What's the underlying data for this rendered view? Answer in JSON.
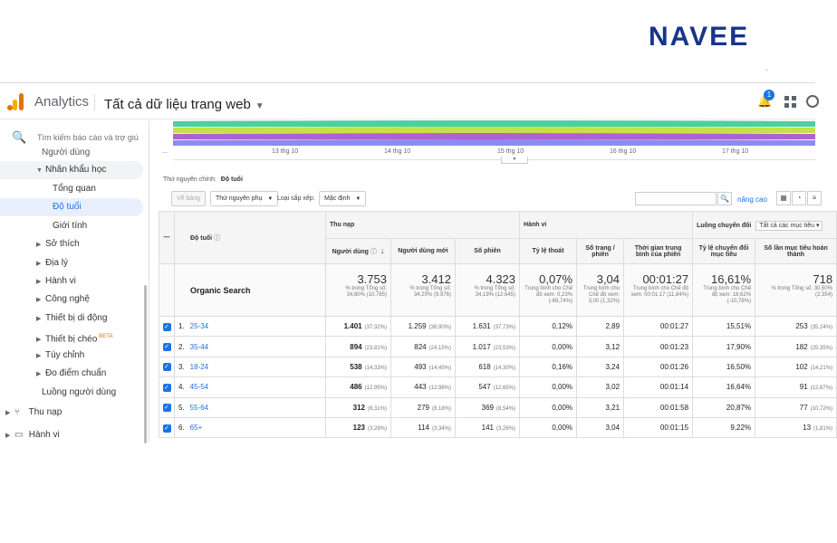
{
  "brand": {
    "logo_text": "NAVEE"
  },
  "topbar": {
    "app_name": "Analytics",
    "property": "Tất cả dữ liệu trang web",
    "notification_count": "1"
  },
  "sidebar": {
    "search_placeholder": "Tìm kiếm báo cáo và trợ giú",
    "items": [
      {
        "label": "Người dùng"
      },
      {
        "label": "Nhân khẩu học"
      },
      {
        "label": "Tổng quan"
      },
      {
        "label": "Độ tuổi"
      },
      {
        "label": "Giới tính"
      },
      {
        "label": "Sở thích"
      },
      {
        "label": "Địa lý"
      },
      {
        "label": "Hành vi"
      },
      {
        "label": "Công nghệ"
      },
      {
        "label": "Thiết bị di động"
      },
      {
        "label": "Thiết bị chéo",
        "badge": "BETA"
      },
      {
        "label": "Tùy chỉnh"
      },
      {
        "label": "Đo điểm chuẩn"
      },
      {
        "label": "Luồng người dùng"
      },
      {
        "label": "Thu nạp"
      },
      {
        "label": "Hành vi"
      }
    ]
  },
  "chart": {
    "x_labels": [
      "13 thg 10",
      "14 thg 10",
      "15 thg 10",
      "16 thg 10",
      "17 thg 10"
    ],
    "series_colors": [
      "#4dd0a0",
      "#c6e04a",
      "#b05fd4",
      "#8c8cf0"
    ],
    "ellipsis": "..."
  },
  "dimension": {
    "label": "Thứ nguyên chính:",
    "value": "Độ tuổi"
  },
  "toolbar": {
    "plot_rows": "Vẽ bảng",
    "secondary_dimension": "Thứ nguyên phụ",
    "sort_type_label": "Loại sắp xếp:",
    "sort_type_value": "Mặc định",
    "advanced": "nâng cao"
  },
  "table": {
    "dim_header": "Độ tuổi",
    "groups": {
      "acquisition": "Thu nạp",
      "behavior": "Hành vi",
      "conversions": "Luồng chuyển đổi",
      "goal_select": "Tất cả các mục tiêu"
    },
    "columns": [
      "Người dùng",
      "Người dùng mới",
      "Số phiên",
      "Tỷ lệ thoát",
      "Số trang / phiên",
      "Thời gian trung bình của phiên",
      "Tỷ lệ chuyển đổi mục tiêu",
      "Số lần mục tiêu hoàn thành"
    ],
    "totals": {
      "label": "Organic Search",
      "values": [
        {
          "big": "3.753",
          "small": "% trong Tổng số: 34,80% (10.785)"
        },
        {
          "big": "3.412",
          "small": "% trong Tổng số: 34,20% (9.976)"
        },
        {
          "big": "4.323",
          "small": "% trong Tổng số: 34,19% (12.645)"
        },
        {
          "big": "0,07%",
          "small": "Trung bình cho Chế độ xem: 0,23% (-69,74%)"
        },
        {
          "big": "3,04",
          "small": "Trung bình cho Chế độ xem: 3,00 (1,32%)"
        },
        {
          "big": "00:01:27",
          "small": "Trung bình cho Chế độ xem: 00:01:17 (11,84%)"
        },
        {
          "big": "16,61%",
          "small": "Trung bình cho Chế độ xem: 18,62% (-10,78%)"
        },
        {
          "big": "718",
          "small": "% trong Tổng số: 30,50% (2.354)"
        }
      ]
    },
    "rows": [
      {
        "idx": "1.",
        "age": "25-34",
        "users": "1.401",
        "users_pct": "(37,32%)",
        "new_users": "1.259",
        "new_users_pct": "(36,90%)",
        "sessions": "1.631",
        "sessions_pct": "(37,73%)",
        "bounce": "0,12%",
        "pages": "2,89",
        "duration": "00:01:27",
        "conv": "15,51%",
        "goals": "253",
        "goals_pct": "(35,24%)"
      },
      {
        "idx": "2.",
        "age": "35-44",
        "users": "894",
        "users_pct": "(23,81%)",
        "new_users": "824",
        "new_users_pct": "(24,15%)",
        "sessions": "1.017",
        "sessions_pct": "(23,53%)",
        "bounce": "0,00%",
        "pages": "3,12",
        "duration": "00:01:23",
        "conv": "17,90%",
        "goals": "182",
        "goals_pct": "(25,35%)"
      },
      {
        "idx": "3.",
        "age": "18-24",
        "users": "538",
        "users_pct": "(14,33%)",
        "new_users": "493",
        "new_users_pct": "(14,45%)",
        "sessions": "618",
        "sessions_pct": "(14,30%)",
        "bounce": "0,16%",
        "pages": "3,24",
        "duration": "00:01:26",
        "conv": "16,50%",
        "goals": "102",
        "goals_pct": "(14,21%)"
      },
      {
        "idx": "4.",
        "age": "45-54",
        "users": "486",
        "users_pct": "(12,95%)",
        "new_users": "443",
        "new_users_pct": "(12,98%)",
        "sessions": "547",
        "sessions_pct": "(12,65%)",
        "bounce": "0,00%",
        "pages": "3,02",
        "duration": "00:01:14",
        "conv": "16,64%",
        "goals": "91",
        "goals_pct": "(12,67%)"
      },
      {
        "idx": "5.",
        "age": "55-64",
        "users": "312",
        "users_pct": "(8,31%)",
        "new_users": "279",
        "new_users_pct": "(8,18%)",
        "sessions": "369",
        "sessions_pct": "(8,54%)",
        "bounce": "0,00%",
        "pages": "3,21",
        "duration": "00:01:58",
        "conv": "20,87%",
        "goals": "77",
        "goals_pct": "(10,72%)"
      },
      {
        "idx": "6.",
        "age": "65+",
        "users": "123",
        "users_pct": "(3,28%)",
        "new_users": "114",
        "new_users_pct": "(3,34%)",
        "sessions": "141",
        "sessions_pct": "(3,26%)",
        "bounce": "0,00%",
        "pages": "3,04",
        "duration": "00:01:15",
        "conv": "9,22%",
        "goals": "13",
        "goals_pct": "(1,81%)"
      }
    ]
  }
}
